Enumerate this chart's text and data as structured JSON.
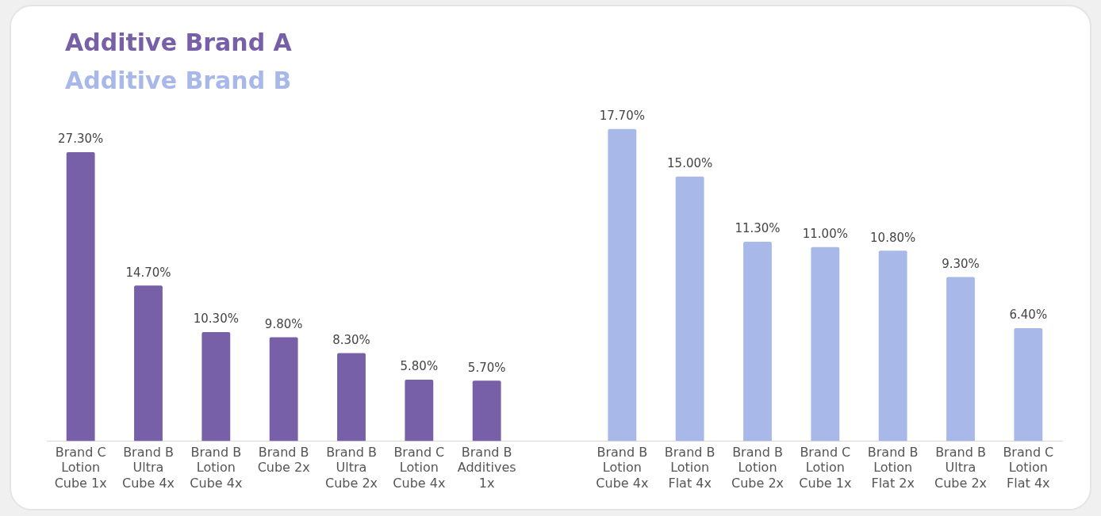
{
  "chart_data": {
    "type": "bar",
    "categories": [
      "Brand C Lotion Cube 1x",
      "Brand B Ultra Cube 4x",
      "Brand B Lotion Cube 4x",
      "Brand B Cube 2x",
      "Brand B Ultra Cube 2x",
      "Brand C Lotion Cube 4x",
      "Brand B Additives 1x",
      null,
      "Brand B Lotion Cube 4x",
      "Brand B Lotion Flat 4x",
      "Brand B Lotion Cube 2x",
      "Brand C Lotion Cube 1x",
      "Brand B Lotion Flat 2x",
      "Brand B Ultra Cube 2x",
      "Brand C Lotion Flat 4x"
    ],
    "series": [
      {
        "name": "Additive Brand A",
        "color": "#7760a8",
        "values": [
          27.3,
          14.7,
          10.3,
          9.8,
          8.3,
          5.8,
          5.7,
          null,
          null,
          null,
          null,
          null,
          null,
          null,
          null
        ],
        "value_labels": [
          "27.30%",
          "14.70%",
          "10.30%",
          "9.80%",
          "8.30%",
          "5.80%",
          "5.70%",
          null,
          null,
          null,
          null,
          null,
          null,
          null,
          null
        ]
      },
      {
        "name": "Additive Brand B",
        "color": "#a8b8e8",
        "axis": "y2",
        "values": [
          null,
          null,
          null,
          null,
          null,
          null,
          null,
          null,
          17.7,
          15.0,
          11.3,
          11.0,
          10.8,
          9.3,
          6.4
        ],
        "value_labels": [
          null,
          null,
          null,
          null,
          null,
          null,
          null,
          null,
          "17.70%",
          "15.00%",
          "11.30%",
          "11.00%",
          "10.80%",
          "9.30%",
          "6.40%"
        ]
      }
    ],
    "tick_labels": "x",
    "legend": "top left"
  }
}
